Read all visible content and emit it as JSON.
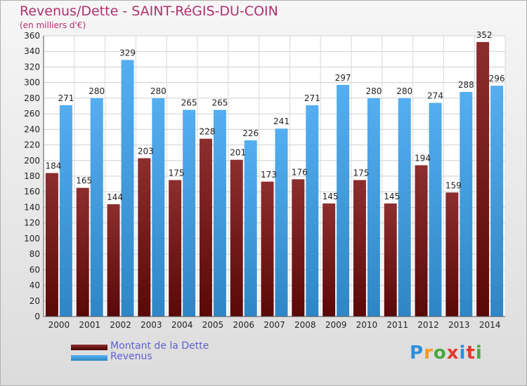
{
  "title": "Revenus/Dette - SAINT-RéGIS-DU-COIN",
  "subtitle": "(en milliers d'€)",
  "logo": {
    "text": "Proxiti",
    "letter_colors": [
      "#2d8fd8",
      "#f39b1c",
      "#4aa843",
      "#e23a2c",
      "#2d8fd8",
      "#e23a2c",
      "#4aa843"
    ]
  },
  "colors": {
    "dette": "#7a1818",
    "revenus": "#3e9ee0"
  },
  "chart_data": {
    "type": "bar",
    "categories": [
      "2000",
      "2001",
      "2002",
      "2003",
      "2004",
      "2005",
      "2006",
      "2007",
      "2008",
      "2009",
      "2010",
      "2011",
      "2012",
      "2013",
      "2014"
    ],
    "series": [
      {
        "name": "Montant de la Dette",
        "values": [
          184,
          165,
          144,
          203,
          175,
          228,
          201,
          173,
          176,
          145,
          175,
          145,
          194,
          159,
          352
        ]
      },
      {
        "name": "Revenus",
        "values": [
          271,
          280,
          329,
          280,
          265,
          265,
          226,
          241,
          271,
          297,
          280,
          280,
          274,
          288,
          296
        ]
      }
    ],
    "ylim": [
      0,
      360
    ],
    "yticks": [
      0,
      20,
      40,
      60,
      80,
      100,
      120,
      140,
      160,
      180,
      200,
      220,
      240,
      260,
      280,
      300,
      320,
      340,
      360
    ],
    "grid": true,
    "legend": "bottom-left"
  }
}
